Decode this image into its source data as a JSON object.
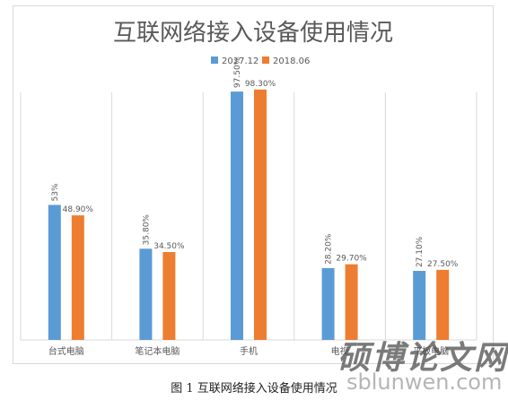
{
  "colors": {
    "series_2017": "#5b9bd5",
    "series_2018": "#ed7d31",
    "axis": "#d9d9d9",
    "label": "#595959",
    "title": "#595959"
  },
  "caption": "图 1 互联网络接入设备使用情况",
  "watermark": {
    "text": "硕博论文网",
    "url": "sblunwen.com"
  },
  "chart_data": {
    "type": "bar",
    "title": "互联网络接入设备使用情况",
    "xlabel": "",
    "ylabel": "",
    "ylim": [
      0,
      100
    ],
    "grid": "vertical separators only",
    "legend_position": "top",
    "categories": [
      "台式电脑",
      "笔记本电脑",
      "手机",
      "电视",
      "平板电脑"
    ],
    "series": [
      {
        "name": "2017.12",
        "values": [
          53,
          35.8,
          97.5,
          28.2,
          27.1
        ],
        "labels": [
          "53%",
          "35.80%",
          "97.50%",
          "28.20%",
          "27.10%"
        ]
      },
      {
        "name": "2018.06",
        "values": [
          48.9,
          34.5,
          98.3,
          29.7,
          27.5
        ],
        "labels": [
          "48.90%",
          "34.50%",
          "98.30%",
          "29.70%",
          "27.50%"
        ]
      }
    ]
  }
}
